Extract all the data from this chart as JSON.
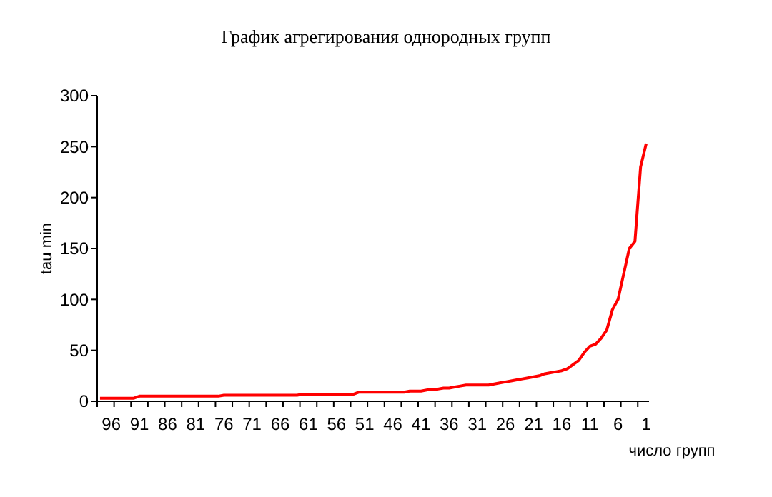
{
  "chart_data": {
    "type": "line",
    "title": "График агрегирования однородных групп",
    "xlabel": "число групп",
    "ylabel": "tau min",
    "categories": [
      null,
      null,
      "96",
      null,
      null,
      null,
      null,
      "91",
      null,
      null,
      null,
      null,
      "86",
      null,
      null,
      null,
      null,
      "81",
      null,
      null,
      null,
      null,
      "76",
      null,
      null,
      null,
      null,
      "71",
      null,
      null,
      null,
      null,
      "66",
      null,
      null,
      null,
      null,
      "61",
      null,
      null,
      null,
      null,
      "56",
      null,
      null,
      null,
      null,
      "51",
      null,
      null,
      null,
      null,
      "46",
      null,
      null,
      null,
      null,
      "41",
      null,
      null,
      null,
      null,
      "36",
      null,
      null,
      null,
      null,
      "31",
      null,
      null,
      null,
      null,
      "26",
      null,
      null,
      null,
      null,
      "21",
      null,
      null,
      null,
      null,
      "16",
      null,
      null,
      null,
      null,
      "11",
      null,
      null,
      null,
      null,
      "6",
      null,
      null,
      null,
      null,
      "1"
    ],
    "series": [
      {
        "color": "#ff0000",
        "values": [
          3,
          3,
          3,
          3,
          3,
          3,
          3,
          5,
          5,
          5,
          5,
          5,
          5,
          5,
          5,
          5,
          5,
          5,
          5,
          5,
          5,
          5,
          6,
          6,
          6,
          6,
          6,
          6,
          6,
          6,
          6,
          6,
          6,
          6,
          6,
          6,
          7,
          7,
          7,
          7,
          7,
          7,
          7,
          7,
          7,
          7,
          9,
          9,
          9,
          9,
          9,
          9,
          9,
          9,
          9,
          10,
          10,
          10,
          11,
          12,
          12,
          13,
          13,
          14,
          15,
          16,
          16,
          16,
          16,
          16,
          17,
          18,
          19,
          20,
          21,
          22,
          23,
          24,
          25,
          27,
          28,
          29,
          30,
          32,
          36,
          40,
          48,
          54,
          56,
          62,
          70,
          90,
          100,
          125,
          150,
          157,
          230,
          253
        ]
      }
    ],
    "ylim": [
      0,
      300
    ],
    "yticks": [
      0,
      50,
      100,
      150,
      200,
      250,
      300
    ],
    "grid": false,
    "marker": "none",
    "line_style": "solid"
  }
}
